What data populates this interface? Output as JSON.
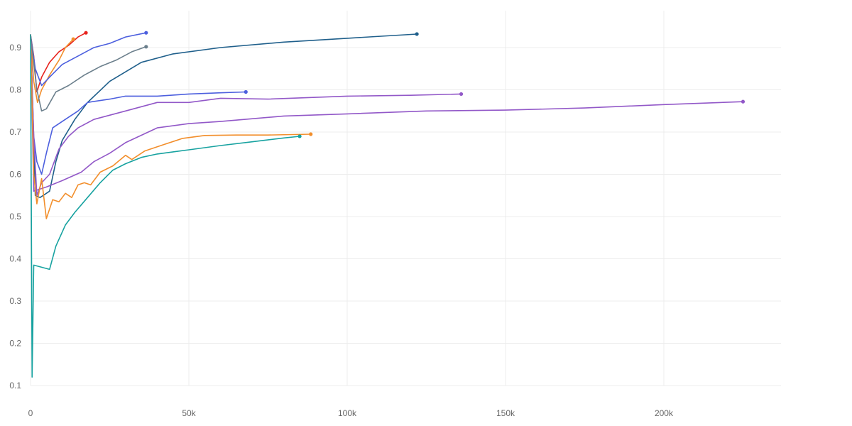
{
  "chart_data": {
    "type": "line",
    "title": "",
    "xlabel": "",
    "ylabel": "",
    "xlim": [
      0,
      237000
    ],
    "ylim": [
      0.1,
      0.95
    ],
    "grid": true,
    "legend": "none",
    "x_ticks": [
      {
        "value": 0,
        "label": "0"
      },
      {
        "value": 50000,
        "label": "50k"
      },
      {
        "value": 100000,
        "label": "100k"
      },
      {
        "value": 150000,
        "label": "150k"
      },
      {
        "value": 200000,
        "label": "200k"
      }
    ],
    "y_ticks": [
      {
        "value": 0.1,
        "label": "0.1"
      },
      {
        "value": 0.2,
        "label": "0.2"
      },
      {
        "value": 0.3,
        "label": "0.3"
      },
      {
        "value": 0.4,
        "label": "0.4"
      },
      {
        "value": 0.5,
        "label": "0.5"
      },
      {
        "value": 0.6,
        "label": "0.6"
      },
      {
        "value": 0.7,
        "label": "0.7"
      },
      {
        "value": 0.8,
        "label": "0.8"
      },
      {
        "value": 0.9,
        "label": "0.9"
      }
    ],
    "series": [
      {
        "color": "#e8231e",
        "points": [
          [
            0,
            0.93
          ],
          [
            1000,
            0.88
          ],
          [
            2000,
            0.795
          ],
          [
            3500,
            0.83
          ],
          [
            6000,
            0.865
          ],
          [
            9000,
            0.89
          ],
          [
            12000,
            0.905
          ],
          [
            15000,
            0.925
          ],
          [
            17500,
            0.935
          ]
        ]
      },
      {
        "color": "#f28e2b",
        "points": [
          [
            0,
            0.93
          ],
          [
            1000,
            0.82
          ],
          [
            2200,
            0.77
          ],
          [
            3500,
            0.8
          ],
          [
            6000,
            0.835
          ],
          [
            9000,
            0.87
          ],
          [
            11000,
            0.9
          ],
          [
            13500,
            0.92
          ]
        ]
      },
      {
        "color": "#4c5fde",
        "points": [
          [
            0,
            0.93
          ],
          [
            1500,
            0.85
          ],
          [
            3500,
            0.81
          ],
          [
            6000,
            0.83
          ],
          [
            10000,
            0.86
          ],
          [
            15000,
            0.88
          ],
          [
            20000,
            0.9
          ],
          [
            25000,
            0.91
          ],
          [
            30000,
            0.925
          ],
          [
            36500,
            0.935
          ]
        ]
      },
      {
        "color": "#6b7f8c",
        "points": [
          [
            0,
            0.93
          ],
          [
            2000,
            0.8
          ],
          [
            3500,
            0.75
          ],
          [
            5000,
            0.755
          ],
          [
            8000,
            0.795
          ],
          [
            12000,
            0.81
          ],
          [
            17000,
            0.835
          ],
          [
            22000,
            0.855
          ],
          [
            27000,
            0.87
          ],
          [
            32000,
            0.89
          ],
          [
            36500,
            0.902
          ]
        ]
      },
      {
        "color": "#1f5f8b",
        "points": [
          [
            0,
            0.93
          ],
          [
            1500,
            0.55
          ],
          [
            3000,
            0.545
          ],
          [
            6000,
            0.56
          ],
          [
            8000,
            0.63
          ],
          [
            10000,
            0.68
          ],
          [
            14000,
            0.73
          ],
          [
            18000,
            0.77
          ],
          [
            25000,
            0.82
          ],
          [
            35000,
            0.865
          ],
          [
            45000,
            0.885
          ],
          [
            60000,
            0.9
          ],
          [
            80000,
            0.913
          ],
          [
            100000,
            0.922
          ],
          [
            122000,
            0.932
          ]
        ]
      },
      {
        "color": "#4c5fde",
        "points": [
          [
            0,
            0.93
          ],
          [
            1000,
            0.69
          ],
          [
            2000,
            0.63
          ],
          [
            3500,
            0.6
          ],
          [
            5000,
            0.65
          ],
          [
            7000,
            0.71
          ],
          [
            10000,
            0.725
          ],
          [
            15000,
            0.75
          ],
          [
            18000,
            0.77
          ],
          [
            25000,
            0.778
          ],
          [
            30000,
            0.785
          ],
          [
            40000,
            0.785
          ],
          [
            50000,
            0.79
          ],
          [
            60000,
            0.793
          ],
          [
            68000,
            0.795
          ]
        ]
      },
      {
        "color": "#9258c8",
        "points": [
          [
            0,
            0.93
          ],
          [
            1000,
            0.69
          ],
          [
            2000,
            0.55
          ],
          [
            3500,
            0.58
          ],
          [
            6000,
            0.6
          ],
          [
            9000,
            0.66
          ],
          [
            12000,
            0.69
          ],
          [
            15000,
            0.71
          ],
          [
            20000,
            0.73
          ],
          [
            30000,
            0.75
          ],
          [
            40000,
            0.77
          ],
          [
            50000,
            0.77
          ],
          [
            60000,
            0.78
          ],
          [
            75000,
            0.778
          ],
          [
            100000,
            0.785
          ],
          [
            120000,
            0.787
          ],
          [
            136000,
            0.79
          ]
        ]
      },
      {
        "color": "#9258c8",
        "points": [
          [
            0,
            0.93
          ],
          [
            1000,
            0.56
          ],
          [
            5000,
            0.57
          ],
          [
            10000,
            0.585
          ],
          [
            16000,
            0.605
          ],
          [
            20000,
            0.63
          ],
          [
            25000,
            0.65
          ],
          [
            30000,
            0.675
          ],
          [
            40000,
            0.71
          ],
          [
            50000,
            0.72
          ],
          [
            60000,
            0.725
          ],
          [
            80000,
            0.738
          ],
          [
            100000,
            0.743
          ],
          [
            125000,
            0.75
          ],
          [
            150000,
            0.752
          ],
          [
            175000,
            0.757
          ],
          [
            200000,
            0.765
          ],
          [
            225000,
            0.772
          ]
        ]
      },
      {
        "color": "#f28e2b",
        "points": [
          [
            0,
            0.93
          ],
          [
            1000,
            0.6
          ],
          [
            2000,
            0.53
          ],
          [
            3500,
            0.59
          ],
          [
            5000,
            0.495
          ],
          [
            7000,
            0.54
          ],
          [
            9000,
            0.535
          ],
          [
            11000,
            0.555
          ],
          [
            13000,
            0.545
          ],
          [
            15000,
            0.575
          ],
          [
            17000,
            0.58
          ],
          [
            19000,
            0.575
          ],
          [
            22000,
            0.605
          ],
          [
            26000,
            0.62
          ],
          [
            30000,
            0.645
          ],
          [
            32000,
            0.635
          ],
          [
            36000,
            0.655
          ],
          [
            42000,
            0.67
          ],
          [
            48000,
            0.685
          ],
          [
            55000,
            0.692
          ],
          [
            65000,
            0.693
          ],
          [
            75000,
            0.693
          ],
          [
            88500,
            0.695
          ]
        ]
      },
      {
        "color": "#17a2a0",
        "points": [
          [
            0,
            0.93
          ],
          [
            500,
            0.12
          ],
          [
            1000,
            0.385
          ],
          [
            6000,
            0.375
          ],
          [
            8000,
            0.43
          ],
          [
            11000,
            0.48
          ],
          [
            14000,
            0.51
          ],
          [
            18000,
            0.545
          ],
          [
            22000,
            0.58
          ],
          [
            26000,
            0.61
          ],
          [
            30000,
            0.625
          ],
          [
            35000,
            0.64
          ],
          [
            40000,
            0.648
          ],
          [
            50000,
            0.658
          ],
          [
            60000,
            0.668
          ],
          [
            70000,
            0.677
          ],
          [
            80000,
            0.686
          ],
          [
            85000,
            0.69
          ]
        ]
      }
    ]
  }
}
